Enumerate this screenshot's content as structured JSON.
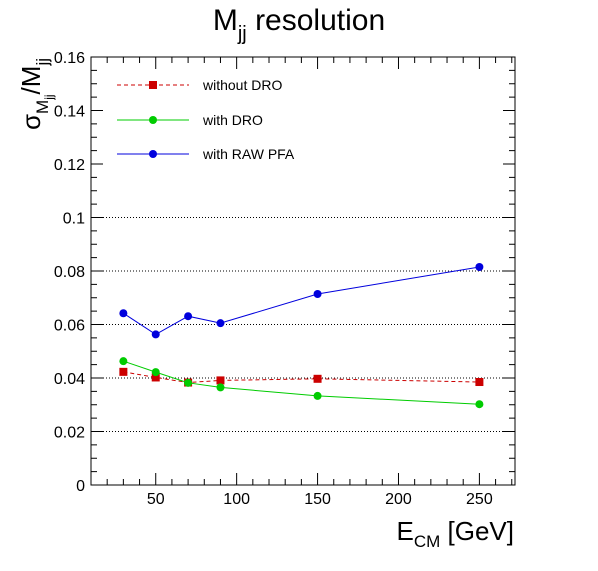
{
  "chart_data": {
    "type": "line",
    "title": "M",
    "title_sub": "jj",
    "title_rest": " resolution",
    "xlabel": {
      "main": "E",
      "sub": "CM",
      "rest": " [GeV]"
    },
    "ylabel": {
      "sigma": "σ",
      "sigma_sub_main": "M",
      "sigma_sub_sub": "jj",
      "slash": "/M",
      "den_sub": "jj"
    },
    "xlim": [
      10,
      272
    ],
    "ylim": [
      0,
      0.16
    ],
    "xticks": [
      50,
      100,
      150,
      200,
      250
    ],
    "xtick_labels": [
      "50",
      "100",
      "150",
      "200",
      "250"
    ],
    "yticks": [
      0,
      0.02,
      0.04,
      0.06,
      0.08,
      0.1,
      0.12,
      0.14,
      0.16
    ],
    "ytick_labels": [
      "0",
      "0.02",
      "0.04",
      "0.06",
      "0.08",
      "0.1",
      "0.12",
      "0.14",
      "0.16"
    ],
    "grid_y_values": [
      0.02,
      0.04,
      0.06,
      0.08,
      0.1
    ],
    "legend_position": "top-left",
    "series": [
      {
        "name": "without DRO",
        "color": "#cc0000",
        "marker": "square",
        "line": "dashed",
        "x": [
          30,
          50,
          70,
          90,
          150,
          250
        ],
        "y": [
          0.0423,
          0.0402,
          0.0383,
          0.0391,
          0.0397,
          0.0385
        ]
      },
      {
        "name": "with DRO",
        "color": "#00cc00",
        "marker": "circle",
        "line": "solid",
        "x": [
          30,
          50,
          70,
          90,
          150,
          250
        ],
        "y": [
          0.0463,
          0.0422,
          0.0382,
          0.0365,
          0.0333,
          0.0302
        ]
      },
      {
        "name": "with RAW PFA",
        "color": "#0000dd",
        "marker": "circle",
        "line": "solid",
        "x": [
          30,
          50,
          70,
          90,
          150,
          250
        ],
        "y": [
          0.0642,
          0.0563,
          0.0631,
          0.0605,
          0.0714,
          0.0815
        ]
      }
    ]
  }
}
